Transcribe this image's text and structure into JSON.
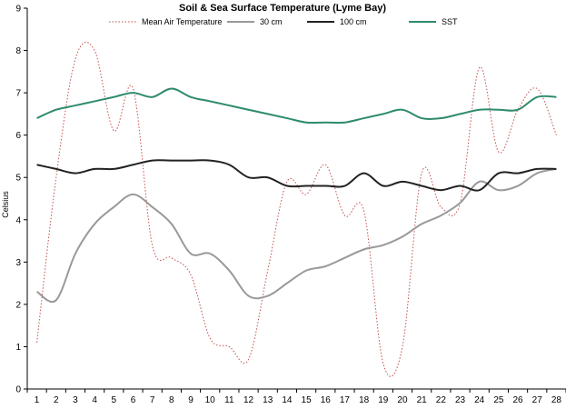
{
  "chart_data": {
    "type": "line",
    "title": "Soil & Sea Surface Temperature (Lyme Bay)",
    "xlabel": "",
    "ylabel": "Celsius",
    "ylim": [
      0,
      9
    ],
    "yticks": [
      0,
      1,
      2,
      3,
      4,
      5,
      6,
      7,
      8,
      9
    ],
    "grid": false,
    "legend_position": "top",
    "x": [
      1,
      2,
      3,
      4,
      5,
      6,
      7,
      8,
      9,
      10,
      11,
      12,
      13,
      14,
      15,
      16,
      17,
      18,
      19,
      20,
      21,
      22,
      23,
      24,
      25,
      26,
      27,
      28
    ],
    "x_tick_labels": [
      "1",
      "2",
      "3",
      "4",
      "5",
      "6",
      "7",
      "8",
      "9",
      "10",
      "11",
      "12",
      "13",
      "14",
      "15",
      "16",
      "17",
      "18",
      "19",
      "20",
      "21",
      "22",
      "23",
      "24",
      "25",
      "26",
      "27",
      "28"
    ],
    "series": [
      {
        "name": "Mean Air Temperature",
        "color": "#c0504d",
        "style": "dotted",
        "values": [
          1.1,
          5.0,
          7.8,
          8.0,
          6.1,
          7.1,
          3.4,
          3.1,
          2.7,
          1.2,
          1.0,
          0.7,
          2.8,
          4.9,
          4.6,
          5.3,
          4.1,
          4.2,
          0.6,
          1.0,
          5.1,
          4.3,
          4.4,
          7.6,
          5.6,
          6.6,
          7.1,
          6.0
        ]
      },
      {
        "name": "30 cm",
        "color": "#999999",
        "style": "solid",
        "values": [
          2.3,
          2.1,
          3.2,
          3.9,
          4.3,
          4.6,
          4.3,
          3.9,
          3.2,
          3.2,
          2.8,
          2.2,
          2.2,
          2.5,
          2.8,
          2.9,
          3.1,
          3.3,
          3.4,
          3.6,
          3.9,
          4.1,
          4.4,
          4.9,
          4.7,
          4.8,
          5.1,
          5.2
        ]
      },
      {
        "name": "100 cm",
        "color": "#222222",
        "style": "solid",
        "values": [
          5.3,
          5.2,
          5.1,
          5.2,
          5.2,
          5.3,
          5.4,
          5.4,
          5.4,
          5.4,
          5.3,
          5.0,
          5.0,
          4.8,
          4.8,
          4.8,
          4.8,
          5.1,
          4.8,
          4.9,
          4.8,
          4.7,
          4.8,
          4.7,
          5.1,
          5.1,
          5.2,
          5.2
        ]
      },
      {
        "name": "SST",
        "color": "#2e8b6b",
        "style": "solid",
        "values": [
          6.4,
          6.6,
          6.7,
          6.8,
          6.9,
          7.0,
          6.9,
          7.1,
          6.9,
          6.8,
          6.7,
          6.6,
          6.5,
          6.4,
          6.3,
          6.3,
          6.3,
          6.4,
          6.5,
          6.6,
          6.4,
          6.4,
          6.5,
          6.6,
          6.6,
          6.6,
          6.9,
          6.9
        ]
      }
    ]
  }
}
